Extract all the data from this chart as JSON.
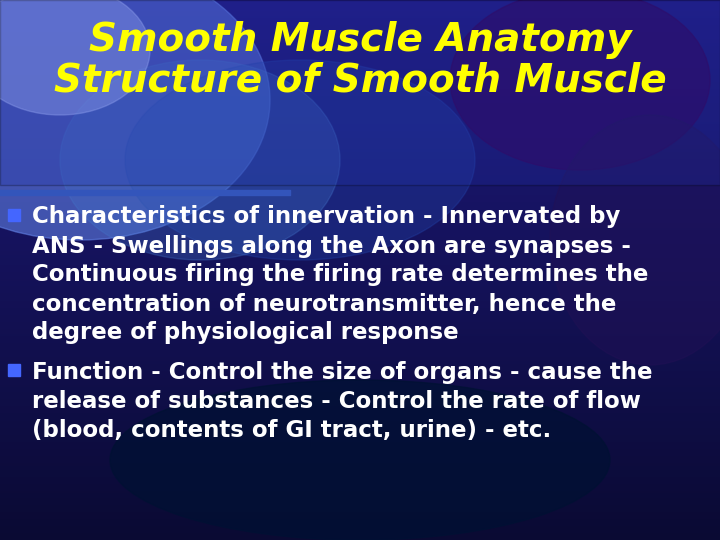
{
  "title_line1": "Smooth Muscle Anatomy",
  "title_line2": "Structure of Smooth Muscle",
  "title_color": "#FFFF00",
  "title_fontsize": 28,
  "bullet_color": "#FFFFFF",
  "bullet_marker_color": "#4466FF",
  "bullet_fontsize": 16.5,
  "divider_color": "#3344AA",
  "bullet1_lines": [
    "Characteristics of innervation - Innervated by",
    "ANS - Swellings along the Axon are synapses -",
    "Continuous firing the firing rate determines the",
    "concentration of neurotransmitter, hence the",
    "degree of physiological response"
  ],
  "bullet2_lines": [
    "Function - Control the size of organs - cause the",
    "release of substances - Control the rate of flow",
    "(blood, contents of GI tract, urine) - etc."
  ]
}
